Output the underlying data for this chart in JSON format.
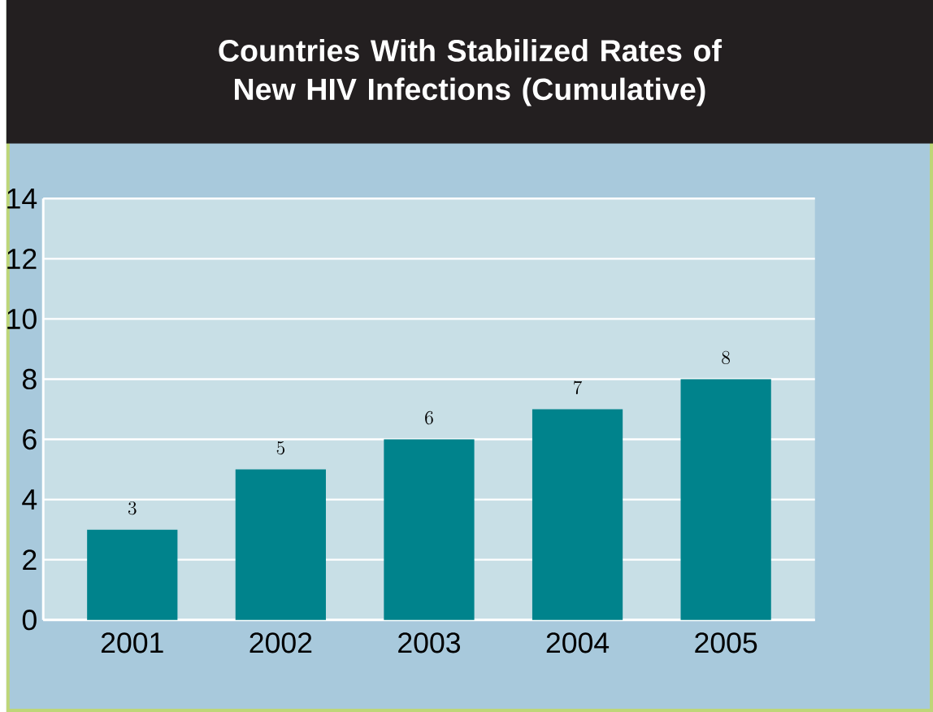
{
  "chart_data": {
    "type": "bar",
    "title": "Countries With Stabilized Rates of New HIV Infections (Cumulative)",
    "categories": [
      "2001",
      "2002",
      "2003",
      "2004",
      "2005"
    ],
    "values": [
      3,
      5,
      6,
      7,
      8
    ],
    "color": "#00838c",
    "ylim": [
      0,
      14
    ],
    "yticks": [
      0,
      2,
      4,
      6,
      8,
      10,
      12,
      14
    ],
    "grid": "y",
    "data_labels": true
  }
}
